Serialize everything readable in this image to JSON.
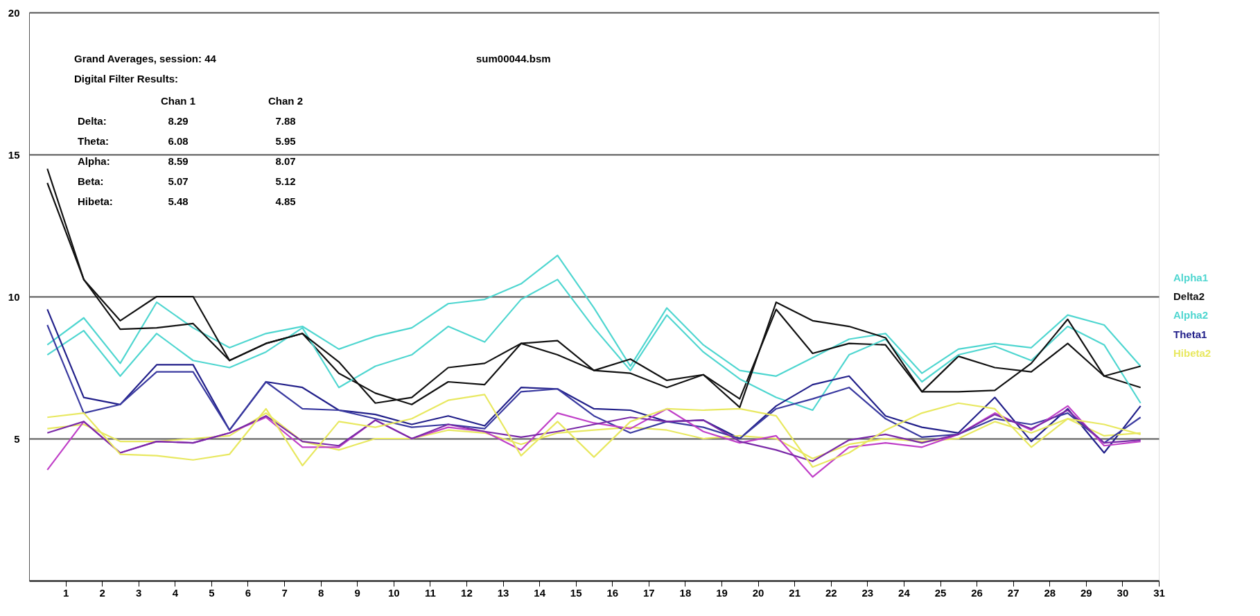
{
  "chart_data": {
    "type": "line",
    "annotations": [
      "Grand Averages, session: 44",
      "sum00044.bsm",
      "Digital Filter Results:",
      "Chan 1",
      "Chan 2",
      "Delta:",
      "8.29",
      "7.88",
      "Theta:",
      "6.08",
      "5.95",
      "Alpha:",
      "8.59",
      "8.07",
      "Beta:",
      "5.07",
      "5.12",
      "Hibeta:",
      "5.48",
      "4.85"
    ],
    "x": [
      0.5,
      1.5,
      2.5,
      3.5,
      4.5,
      5.5,
      6.5,
      7.5,
      8.5,
      9.5,
      10.5,
      11.5,
      12.5,
      13.5,
      14.5,
      15.5,
      16.5,
      17.5,
      18.5,
      19.5,
      20.5,
      21.5,
      22.5,
      23.5,
      24.5,
      25.5,
      26.5,
      27.5,
      28.5,
      29.5,
      30.5
    ],
    "series": [
      {
        "name": "Alpha1",
        "color": "#4fd6d0",
        "values": [
          8.3,
          9.25,
          7.65,
          9.8,
          8.9,
          8.2,
          8.7,
          8.95,
          8.15,
          8.6,
          8.9,
          9.75,
          9.9,
          10.45,
          11.45,
          9.6,
          7.55,
          9.6,
          8.3,
          7.4,
          7.2,
          7.85,
          8.5,
          8.7,
          7.3,
          8.15,
          8.35,
          8.2,
          9.35,
          9.0,
          7.55
        ]
      },
      {
        "name": "Delta2",
        "color": "#111111",
        "values": [
          14.0,
          10.6,
          8.85,
          8.9,
          9.05,
          7.75,
          8.35,
          8.7,
          7.3,
          6.6,
          6.2,
          7.0,
          6.9,
          8.35,
          7.95,
          7.4,
          7.3,
          6.8,
          7.25,
          6.4,
          9.55,
          8.0,
          8.35,
          8.3,
          6.65,
          7.9,
          7.5,
          7.35,
          8.35,
          7.2,
          6.8
        ]
      },
      {
        "name": "Alpha2",
        "color": "#4fd6d0",
        "values": [
          7.95,
          8.8,
          7.2,
          8.7,
          7.75,
          7.5,
          8.05,
          8.9,
          6.8,
          7.55,
          7.95,
          8.95,
          8.4,
          9.9,
          10.6,
          8.9,
          7.4,
          9.35,
          8.05,
          7.1,
          6.45,
          6.0,
          7.95,
          8.5,
          7.0,
          7.95,
          8.25,
          7.75,
          8.95,
          8.3,
          6.25
        ]
      },
      {
        "name": "Theta1",
        "color": "#22208a",
        "values": [
          9.55,
          6.45,
          6.2,
          7.6,
          7.6,
          5.3,
          7.0,
          6.8,
          6.0,
          5.85,
          5.5,
          5.8,
          5.45,
          6.8,
          6.75,
          6.05,
          6.0,
          5.6,
          5.65,
          5.0,
          6.15,
          6.9,
          7.2,
          5.8,
          5.4,
          5.2,
          6.45,
          4.9,
          6.05,
          4.5,
          6.15
        ]
      },
      {
        "name": "Hibeta2",
        "color": "#e8e860",
        "values": [
          5.35,
          5.5,
          4.9,
          4.9,
          5.0,
          5.1,
          5.9,
          4.9,
          4.6,
          5.0,
          5.0,
          5.3,
          5.2,
          4.8,
          5.2,
          5.3,
          5.4,
          5.3,
          5.0,
          5.1,
          5.0,
          4.3,
          4.8,
          5.0,
          4.9,
          5.0,
          5.6,
          5.2,
          5.7,
          5.1,
          5.2
        ]
      },
      {
        "color": "#111111",
        "values": [
          14.5,
          10.6,
          9.15,
          10.0,
          10.0,
          7.75,
          8.35,
          8.7,
          7.7,
          6.25,
          6.45,
          7.5,
          7.65,
          8.35,
          8.45,
          7.4,
          7.8,
          7.05,
          7.25,
          6.1,
          9.8,
          9.15,
          8.95,
          8.55,
          6.65,
          6.65,
          6.7,
          7.65,
          9.2,
          7.2,
          7.55
        ]
      },
      {
        "color": "#3a3aa0",
        "values": [
          9.0,
          5.9,
          6.2,
          7.35,
          7.35,
          5.3,
          7.0,
          6.05,
          6.0,
          5.7,
          5.4,
          5.5,
          5.35,
          6.65,
          6.75,
          5.8,
          5.2,
          5.6,
          5.4,
          5.0,
          6.05,
          6.4,
          6.8,
          5.7,
          5.05,
          5.15,
          5.7,
          5.5,
          5.9,
          4.85,
          5.75
        ]
      },
      {
        "color": "#c040c8",
        "values": [
          3.9,
          5.6,
          4.5,
          4.9,
          4.85,
          5.2,
          5.75,
          4.7,
          4.7,
          5.65,
          5.0,
          5.4,
          5.25,
          4.6,
          5.9,
          5.55,
          5.35,
          6.05,
          5.25,
          4.85,
          5.1,
          3.65,
          4.7,
          4.85,
          4.7,
          5.15,
          5.9,
          5.3,
          6.15,
          4.75,
          4.9
        ]
      },
      {
        "color": "#7a2aa8",
        "values": [
          5.2,
          5.6,
          4.5,
          4.9,
          4.85,
          5.2,
          5.8,
          4.9,
          4.75,
          5.65,
          5.0,
          5.5,
          5.25,
          5.05,
          5.25,
          5.5,
          5.75,
          5.6,
          5.65,
          4.9,
          4.6,
          4.2,
          4.95,
          5.15,
          4.85,
          5.15,
          5.85,
          5.35,
          6.0,
          4.85,
          4.95
        ]
      },
      {
        "color": "#e8e860",
        "values": [
          5.75,
          5.9,
          4.45,
          4.4,
          4.25,
          4.45,
          6.05,
          4.05,
          5.6,
          5.4,
          5.7,
          6.35,
          6.55,
          4.4,
          5.6,
          4.35,
          5.6,
          6.05,
          6.0,
          6.05,
          5.8,
          4.0,
          4.5,
          5.3,
          5.9,
          6.25,
          6.05,
          4.7,
          5.7,
          5.5,
          5.15
        ]
      }
    ],
    "xlim": [
      0,
      31
    ],
    "xticks": [
      1,
      2,
      3,
      4,
      5,
      6,
      7,
      8,
      9,
      10,
      11,
      12,
      13,
      14,
      15,
      16,
      17,
      18,
      19,
      20,
      21,
      22,
      23,
      24,
      25,
      26,
      27,
      28,
      29,
      30,
      31
    ],
    "ylim": [
      0,
      20
    ],
    "yticks": [
      5,
      10,
      15,
      20
    ],
    "grid": "y",
    "legend": "right",
    "line_style": "solid",
    "marker": "none"
  }
}
